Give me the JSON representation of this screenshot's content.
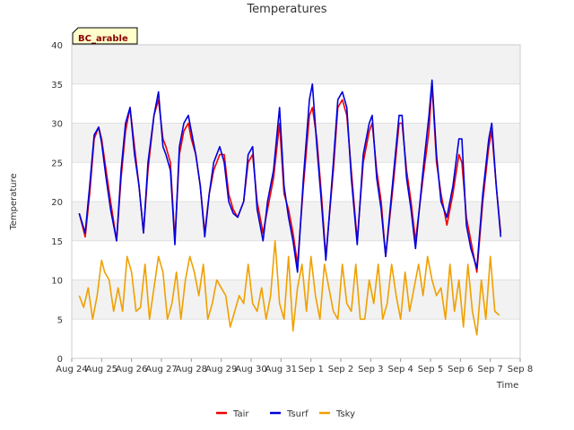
{
  "chart_data": {
    "type": "line",
    "title": "Temperatures",
    "xlabel": "Time",
    "ylabel": "Temperature",
    "site_label": "BC_arable",
    "ylim": [
      0,
      40
    ],
    "xlim": [
      0,
      15
    ],
    "yticks": [
      0,
      5,
      10,
      15,
      20,
      25,
      30,
      35,
      40
    ],
    "xticks": [
      {
        "value": 0,
        "label": "Aug 24"
      },
      {
        "value": 1,
        "label": "Aug 25"
      },
      {
        "value": 2,
        "label": "Aug 26"
      },
      {
        "value": 3,
        "label": "Aug 27"
      },
      {
        "value": 4,
        "label": "Aug 28"
      },
      {
        "value": 5,
        "label": "Aug 29"
      },
      {
        "value": 6,
        "label": "Aug 30"
      },
      {
        "value": 7,
        "label": "Aug 31"
      },
      {
        "value": 8,
        "label": "Sep 1"
      },
      {
        "value": 9,
        "label": "Sep 2"
      },
      {
        "value": 10,
        "label": "Sep 3"
      },
      {
        "value": 11,
        "label": "Sep 4"
      },
      {
        "value": 12,
        "label": "Sep 5"
      },
      {
        "value": 13,
        "label": "Sep 6"
      },
      {
        "value": 14,
        "label": "Sep 7"
      },
      {
        "value": 15,
        "label": "Sep 8"
      }
    ],
    "grid": true,
    "legend_position": "bottom-center",
    "series": [
      {
        "name": "Tair",
        "color": "#ee0000",
        "x": [
          0.25,
          0.45,
          0.6,
          0.75,
          0.9,
          1.0,
          1.15,
          1.3,
          1.5,
          1.65,
          1.8,
          1.95,
          2.1,
          2.25,
          2.4,
          2.55,
          2.75,
          2.9,
          3.05,
          3.15,
          3.3,
          3.45,
          3.6,
          3.75,
          3.9,
          4.0,
          4.15,
          4.3,
          4.45,
          4.6,
          4.75,
          4.95,
          5.1,
          5.25,
          5.4,
          5.55,
          5.75,
          5.9,
          6.05,
          6.2,
          6.4,
          6.55,
          6.75,
          6.95,
          7.1,
          7.25,
          7.4,
          7.55,
          7.75,
          7.95,
          8.05,
          8.2,
          8.35,
          8.5,
          8.75,
          8.9,
          9.05,
          9.2,
          9.35,
          9.55,
          9.75,
          9.95,
          10.05,
          10.2,
          10.35,
          10.5,
          10.75,
          10.95,
          11.05,
          11.2,
          11.35,
          11.5,
          11.75,
          11.95,
          12.05,
          12.2,
          12.35,
          12.55,
          12.75,
          12.95,
          13.05,
          13.2,
          13.35,
          13.55,
          13.75,
          13.95,
          14.05,
          14.2,
          14.35
        ],
        "values": [
          18.5,
          15.5,
          21,
          28,
          29.5,
          28,
          24,
          20,
          15,
          23,
          29,
          32,
          27,
          22,
          16,
          24,
          31,
          33,
          28,
          27,
          25,
          15,
          26,
          29,
          30,
          28,
          26,
          22,
          16,
          21,
          24,
          26,
          26,
          21,
          19,
          18,
          20,
          25,
          26,
          20,
          16,
          19,
          23,
          30,
          21,
          19,
          16,
          12,
          22,
          31,
          32,
          28,
          21,
          13,
          24,
          32,
          33,
          31,
          24,
          15,
          25,
          29,
          30,
          24,
          20,
          13,
          22,
          30,
          30,
          24,
          20,
          15,
          23,
          29,
          35,
          25,
          21,
          17,
          21,
          26,
          25,
          18,
          15,
          11,
          20,
          27,
          29,
          22,
          16
        ]
      },
      {
        "name": "Tsurf",
        "color": "#0000dd",
        "x": [
          0.25,
          0.45,
          0.6,
          0.75,
          0.9,
          1.0,
          1.15,
          1.3,
          1.5,
          1.65,
          1.8,
          1.95,
          2.1,
          2.25,
          2.4,
          2.55,
          2.75,
          2.9,
          3.05,
          3.15,
          3.3,
          3.45,
          3.6,
          3.75,
          3.9,
          4.0,
          4.15,
          4.3,
          4.45,
          4.6,
          4.75,
          4.95,
          5.1,
          5.25,
          5.4,
          5.55,
          5.75,
          5.9,
          6.05,
          6.2,
          6.4,
          6.55,
          6.75,
          6.95,
          7.1,
          7.25,
          7.4,
          7.55,
          7.75,
          7.95,
          8.05,
          8.2,
          8.35,
          8.5,
          8.75,
          8.9,
          9.05,
          9.2,
          9.35,
          9.55,
          9.75,
          9.95,
          10.05,
          10.2,
          10.35,
          10.5,
          10.75,
          10.95,
          11.05,
          11.2,
          11.35,
          11.5,
          11.75,
          11.95,
          12.05,
          12.2,
          12.35,
          12.55,
          12.75,
          12.95,
          13.05,
          13.2,
          13.35,
          13.55,
          13.75,
          13.95,
          14.05,
          14.2,
          14.35
        ],
        "values": [
          18.5,
          16,
          22,
          28.5,
          29.5,
          27.5,
          23,
          19,
          15,
          24,
          30,
          32,
          26,
          22,
          16,
          25,
          31,
          34,
          27,
          26,
          24,
          14.5,
          27,
          30,
          31,
          29,
          26,
          22,
          15.5,
          21,
          25,
          27,
          25,
          20,
          18.5,
          18,
          20,
          26,
          27,
          19,
          15,
          20,
          24,
          32,
          22,
          18,
          15,
          11,
          23,
          33,
          35,
          27,
          20,
          12.5,
          25,
          33,
          34,
          32,
          23,
          14.5,
          26,
          30,
          31,
          23,
          19,
          13,
          23,
          31,
          31,
          23,
          19,
          14,
          24,
          31,
          35.5,
          26,
          20,
          18,
          22,
          28,
          28,
          17,
          14,
          11.5,
          21,
          28,
          30,
          22,
          15.5
        ]
      },
      {
        "name": "Tsky",
        "color": "#f0a000",
        "x": [
          0.25,
          0.4,
          0.55,
          0.7,
          0.85,
          1.0,
          1.1,
          1.25,
          1.4,
          1.55,
          1.7,
          1.85,
          2.0,
          2.15,
          2.3,
          2.45,
          2.6,
          2.75,
          2.9,
          3.05,
          3.2,
          3.35,
          3.5,
          3.65,
          3.8,
          3.95,
          4.1,
          4.25,
          4.4,
          4.55,
          4.7,
          4.85,
          5.0,
          5.15,
          5.3,
          5.45,
          5.6,
          5.75,
          5.9,
          6.05,
          6.2,
          6.35,
          6.5,
          6.65,
          6.8,
          6.95,
          7.1,
          7.25,
          7.4,
          7.55,
          7.7,
          7.85,
          8.0,
          8.15,
          8.3,
          8.45,
          8.6,
          8.75,
          8.9,
          9.05,
          9.2,
          9.35,
          9.5,
          9.65,
          9.8,
          9.95,
          10.1,
          10.25,
          10.4,
          10.55,
          10.7,
          10.85,
          11.0,
          11.15,
          11.3,
          11.45,
          11.6,
          11.75,
          11.9,
          12.05,
          12.2,
          12.35,
          12.5,
          12.65,
          12.8,
          12.95,
          13.1,
          13.25,
          13.4,
          13.55,
          13.7,
          13.85,
          14.0,
          14.15,
          14.3
        ],
        "values": [
          8,
          6.5,
          9,
          5,
          8,
          12.5,
          11,
          10,
          6,
          9,
          6,
          13,
          11,
          6,
          6.5,
          12,
          5,
          9,
          13,
          11,
          5,
          7,
          11,
          5,
          10,
          13,
          11,
          8,
          12,
          5,
          7,
          10,
          9,
          8,
          4,
          6,
          8,
          7,
          12,
          7,
          6,
          9,
          5,
          8,
          15,
          7,
          5,
          13,
          3.5,
          9,
          12,
          6,
          13,
          8,
          5,
          12,
          9,
          6,
          5,
          12,
          7,
          6,
          12,
          5,
          5,
          10,
          7,
          12,
          5,
          7,
          12,
          8,
          5,
          11,
          6,
          9,
          12,
          8,
          13,
          10,
          8,
          9,
          5,
          12,
          6,
          10,
          4,
          12,
          6,
          3,
          10,
          5,
          13,
          6,
          5.5
        ]
      }
    ]
  }
}
